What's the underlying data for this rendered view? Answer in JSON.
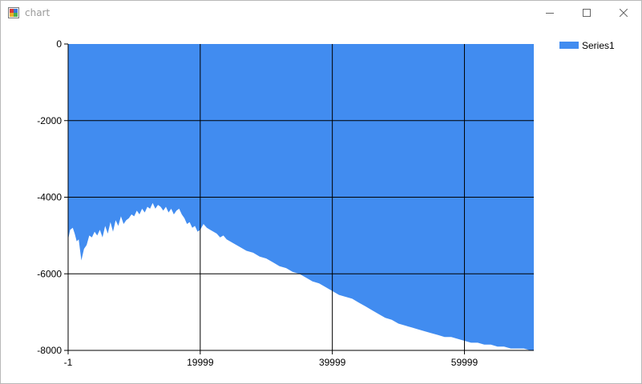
{
  "window": {
    "title": "chart",
    "minimize_icon": "minimize-icon",
    "maximize_icon": "maximize-icon",
    "close_icon": "close-icon"
  },
  "chart_data": {
    "type": "area",
    "title": "",
    "xlabel": "",
    "ylabel": "",
    "xlim": [
      -1,
      70500
    ],
    "ylim": [
      -8000,
      0
    ],
    "x_ticks": [
      -1,
      19999,
      39999,
      59999
    ],
    "y_ticks": [
      0,
      -2000,
      -4000,
      -6000,
      -8000
    ],
    "grid": true,
    "legend_position": "top-right",
    "colors": {
      "series": "#418cf0",
      "axis": "#000000"
    },
    "series": [
      {
        "name": "Series1",
        "x": [
          -1,
          300,
          700,
          1000,
          1300,
          1600,
          2000,
          2400,
          2800,
          3200,
          3600,
          4000,
          4400,
          4800,
          5200,
          5600,
          6000,
          6400,
          6800,
          7200,
          7600,
          8000,
          8400,
          8800,
          9200,
          9600,
          10000,
          10400,
          10800,
          11200,
          11600,
          12000,
          12400,
          12800,
          13200,
          13600,
          14000,
          14400,
          14800,
          15200,
          15600,
          16000,
          16400,
          16800,
          17200,
          17600,
          18000,
          18400,
          18800,
          19200,
          19600,
          19999,
          20500,
          21000,
          21500,
          22000,
          22500,
          23000,
          23500,
          24000,
          24500,
          25000,
          26000,
          27000,
          28000,
          29000,
          30000,
          31000,
          32000,
          33000,
          34000,
          35000,
          36000,
          37000,
          38000,
          39000,
          39999,
          41000,
          42000,
          43000,
          44000,
          45000,
          46000,
          47000,
          48000,
          49000,
          50000,
          51000,
          52000,
          53000,
          54000,
          55000,
          56000,
          57000,
          58000,
          59000,
          59999,
          61000,
          62000,
          63000,
          64000,
          65000,
          66000,
          67000,
          68000,
          69000,
          70000,
          70500
        ],
        "y": [
          -5100,
          -4850,
          -4800,
          -4950,
          -5150,
          -5100,
          -5650,
          -5350,
          -5250,
          -5000,
          -5050,
          -4900,
          -5000,
          -4850,
          -5050,
          -4750,
          -4950,
          -4650,
          -4900,
          -4600,
          -4750,
          -4500,
          -4700,
          -4600,
          -4550,
          -4450,
          -4500,
          -4350,
          -4450,
          -4300,
          -4400,
          -4250,
          -4300,
          -4150,
          -4300,
          -4200,
          -4250,
          -4350,
          -4250,
          -4400,
          -4300,
          -4450,
          -4350,
          -4300,
          -4450,
          -4550,
          -4700,
          -4650,
          -4800,
          -4750,
          -4900,
          -4850,
          -4700,
          -4800,
          -4850,
          -4900,
          -4950,
          -5050,
          -5000,
          -5100,
          -5150,
          -5200,
          -5300,
          -5400,
          -5450,
          -5550,
          -5600,
          -5700,
          -5800,
          -5850,
          -5950,
          -6000,
          -6100,
          -6200,
          -6250,
          -6350,
          -6450,
          -6550,
          -6600,
          -6650,
          -6750,
          -6850,
          -6950,
          -7050,
          -7150,
          -7200,
          -7300,
          -7350,
          -7400,
          -7450,
          -7500,
          -7550,
          -7600,
          -7650,
          -7650,
          -7700,
          -7750,
          -7800,
          -7800,
          -7850,
          -7850,
          -7900,
          -7900,
          -7950,
          -7950,
          -7950,
          -8000,
          -8000
        ]
      }
    ]
  }
}
